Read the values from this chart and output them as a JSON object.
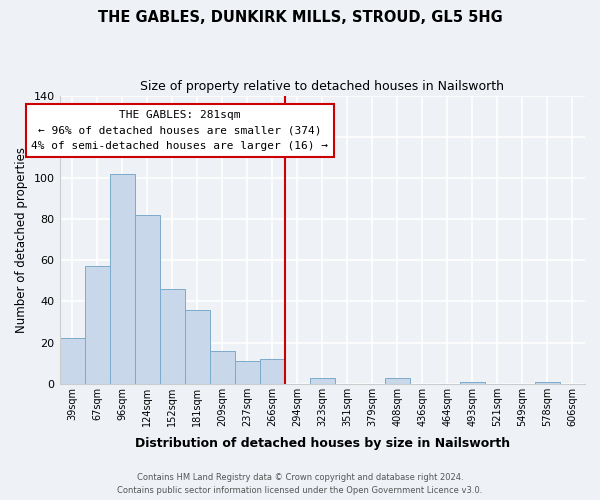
{
  "title": "THE GABLES, DUNKIRK MILLS, STROUD, GL5 5HG",
  "subtitle": "Size of property relative to detached houses in Nailsworth",
  "xlabel": "Distribution of detached houses by size in Nailsworth",
  "ylabel": "Number of detached properties",
  "bar_labels": [
    "39sqm",
    "67sqm",
    "96sqm",
    "124sqm",
    "152sqm",
    "181sqm",
    "209sqm",
    "237sqm",
    "266sqm",
    "294sqm",
    "323sqm",
    "351sqm",
    "379sqm",
    "408sqm",
    "436sqm",
    "464sqm",
    "493sqm",
    "521sqm",
    "549sqm",
    "578sqm",
    "606sqm"
  ],
  "bar_values": [
    22,
    57,
    102,
    82,
    46,
    36,
    16,
    11,
    12,
    0,
    3,
    0,
    0,
    3,
    0,
    0,
    1,
    0,
    0,
    1,
    0
  ],
  "bar_color": "#c8d8ea",
  "bar_edge_color": "#7aaacb",
  "vline_x": 8.5,
  "vline_color": "#cc0000",
  "annotation_title": "THE GABLES: 281sqm",
  "annotation_line1": "← 96% of detached houses are smaller (374)",
  "annotation_line2": "4% of semi-detached houses are larger (16) →",
  "annotation_box_color": "#ffffff",
  "annotation_box_edge": "#cc0000",
  "ylim": [
    0,
    140
  ],
  "yticks": [
    0,
    20,
    40,
    60,
    80,
    100,
    120,
    140
  ],
  "footnote1": "Contains HM Land Registry data © Crown copyright and database right 2024.",
  "footnote2": "Contains public sector information licensed under the Open Government Licence v3.0.",
  "background_color": "#eef2f7",
  "grid_color": "#ffffff",
  "spine_color": "#cccccc"
}
